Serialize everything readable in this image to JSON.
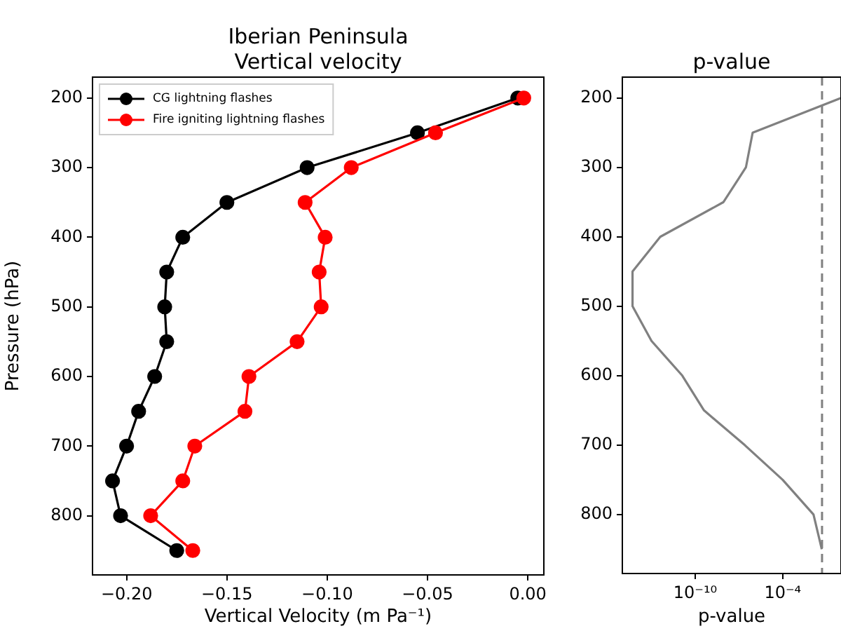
{
  "chart_data": [
    {
      "type": "line",
      "title": "Iberian Peninsula\nVertical velocity",
      "xlabel": "Vertical Velocity (m Pa⁻¹)",
      "ylabel": "Pressure (hPa)",
      "orientation": "horizontal",
      "x": [
        200,
        250,
        300,
        350,
        400,
        450,
        500,
        550,
        600,
        650,
        700,
        750,
        800,
        850
      ],
      "series": [
        {
          "name": "CG lightning flashes",
          "color": "#000000",
          "values": [
            -0.005,
            -0.055,
            -0.11,
            -0.15,
            -0.172,
            -0.18,
            -0.181,
            -0.18,
            -0.186,
            -0.194,
            -0.2,
            -0.207,
            -0.203,
            -0.175
          ]
        },
        {
          "name": "Fire igniting lightning flashes",
          "color": "#ff0000",
          "values": [
            -0.002,
            -0.046,
            -0.088,
            -0.111,
            -0.101,
            -0.104,
            -0.103,
            -0.115,
            -0.139,
            -0.141,
            -0.166,
            -0.172,
            -0.188,
            -0.167
          ]
        }
      ],
      "xlim": [
        -0.217,
        0.008
      ],
      "xticks": [
        {
          "value": -0.2,
          "label": "−0.20"
        },
        {
          "value": -0.15,
          "label": "−0.15"
        },
        {
          "value": -0.1,
          "label": "−0.10"
        },
        {
          "value": -0.05,
          "label": "−0.05"
        },
        {
          "value": 0,
          "label": "0.00"
        }
      ],
      "ylim": [
        885,
        170
      ],
      "yticks": [
        200,
        300,
        400,
        500,
        600,
        700,
        800
      ],
      "marker": "circle",
      "legend": "top left",
      "grid": false
    },
    {
      "type": "line",
      "title": "p-value",
      "xlabel": "p-value",
      "orientation": "horizontal",
      "log": "x",
      "x": [
        200,
        250,
        300,
        350,
        400,
        450,
        500,
        550,
        600,
        650,
        700,
        750,
        800,
        850
      ],
      "series": [
        {
          "color": "#808080",
          "values": [
            1,
            8.7e-07,
            3e-07,
            8.7e-09,
            4e-13,
            5e-15,
            5e-15,
            1e-13,
            1.3e-11,
            4e-10,
            2.5e-07,
            0.0001,
            0.013,
            0.048
          ]
        }
      ],
      "xlim": [
        1e-15,
        1
      ],
      "xticks": [
        {
          "value": 1e-10,
          "label": "10⁻¹⁰"
        },
        {
          "value": 0.0001,
          "label": "10⁻⁴"
        }
      ],
      "ylim": [
        885,
        170
      ],
      "yticks": [
        200,
        300,
        400,
        500,
        600,
        700,
        800
      ],
      "ref_lines": [
        {
          "axis": "x",
          "value": 0.05,
          "color": "#808080",
          "line_style": "dashed"
        }
      ],
      "marker": "none",
      "legend": false,
      "grid": false
    }
  ]
}
